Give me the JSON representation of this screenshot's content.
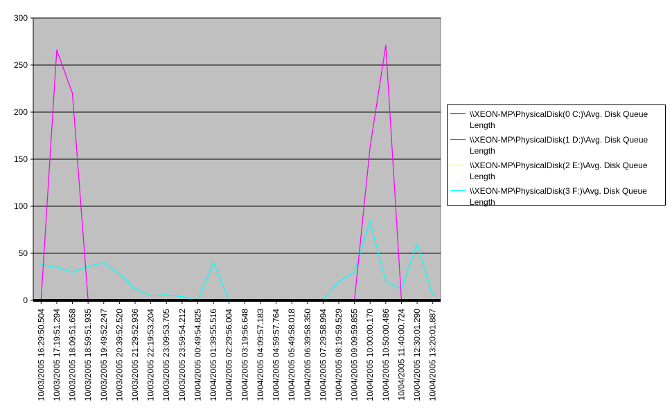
{
  "chart_data": {
    "type": "line",
    "title": "",
    "xlabel": "",
    "ylabel": "",
    "ylim": [
      0,
      300
    ],
    "yticks": [
      0,
      50,
      100,
      150,
      200,
      250,
      300
    ],
    "grid": true,
    "legend_position": "right",
    "background_color": "#c0c0c0",
    "categories": [
      "10/03/2005 16:29:50.504",
      "10/03/2005 17:19:51.294",
      "10/03/2005 18:09:51.658",
      "10/03/2005 18:59:51.935",
      "10/03/2005 19:49:52.247",
      "10/03/2005 20:39:52.520",
      "10/03/2005 21:29:52.936",
      "10/03/2005 22:19:53.204",
      "10/03/2005 23:09:53.705",
      "10/03/2005 23:59:54.212",
      "10/04/2005 00:49:54.825",
      "10/04/2005 01:39:55.516",
      "10/04/2005 02:29:56.004",
      "10/04/2005 03:19:56.648",
      "10/04/2005 04:09:57.183",
      "10/04/2005 04:59:57.764",
      "10/04/2005 05:49:58.018",
      "10/04/2005 06:39:58.350",
      "10/04/2005 07:29:58.994",
      "10/04/2005 08:19:59.529",
      "10/04/2005 09:09:59.855",
      "10/04/2005 10:00:00.170",
      "10/04/2005 10:50:00.486",
      "10/04/2005 11:40:00.724",
      "10/04/2005 12:30:01.290",
      "10/04/2005 13:20:01.887"
    ],
    "series": [
      {
        "name": "\\\\XEON-MP\\PhysicalDisk(0 C:)\\Avg. Disk Queue Length",
        "color": "#000000",
        "values": [
          0,
          0,
          0,
          0,
          0,
          0,
          0,
          0,
          0,
          0,
          0,
          0,
          0,
          0,
          0,
          0,
          0,
          0,
          0,
          0,
          0,
          0,
          0,
          0,
          0,
          0
        ]
      },
      {
        "name": "\\\\XEON-MP\\PhysicalDisk(1 D:)\\Avg. Disk Queue Length",
        "color": "#ff00ff",
        "values": [
          0,
          266,
          220,
          0,
          0,
          0,
          0,
          0,
          0,
          0,
          0,
          0,
          0,
          0,
          0,
          0,
          0,
          0,
          0,
          0,
          0,
          163,
          271,
          0,
          0,
          0
        ]
      },
      {
        "name": "\\\\XEON-MP\\PhysicalDisk(2 E:)\\Avg. Disk Queue Length",
        "color": "#ffff00",
        "values": [
          0,
          0,
          0,
          0,
          0,
          0,
          0,
          0,
          0,
          0,
          0,
          0,
          0,
          0,
          0,
          0,
          0,
          0,
          0,
          0,
          0,
          0,
          0,
          0,
          0,
          0
        ]
      },
      {
        "name": "\\\\XEON-MP\\PhysicalDisk(3 F:)\\Avg. Disk Queue Length",
        "color": "#00ffff",
        "values": [
          38,
          35,
          30,
          36,
          40,
          28,
          12,
          5,
          6,
          4,
          0,
          40,
          0,
          0,
          0,
          0,
          0,
          0,
          0,
          20,
          30,
          84,
          20,
          12,
          60,
          5
        ]
      }
    ]
  }
}
